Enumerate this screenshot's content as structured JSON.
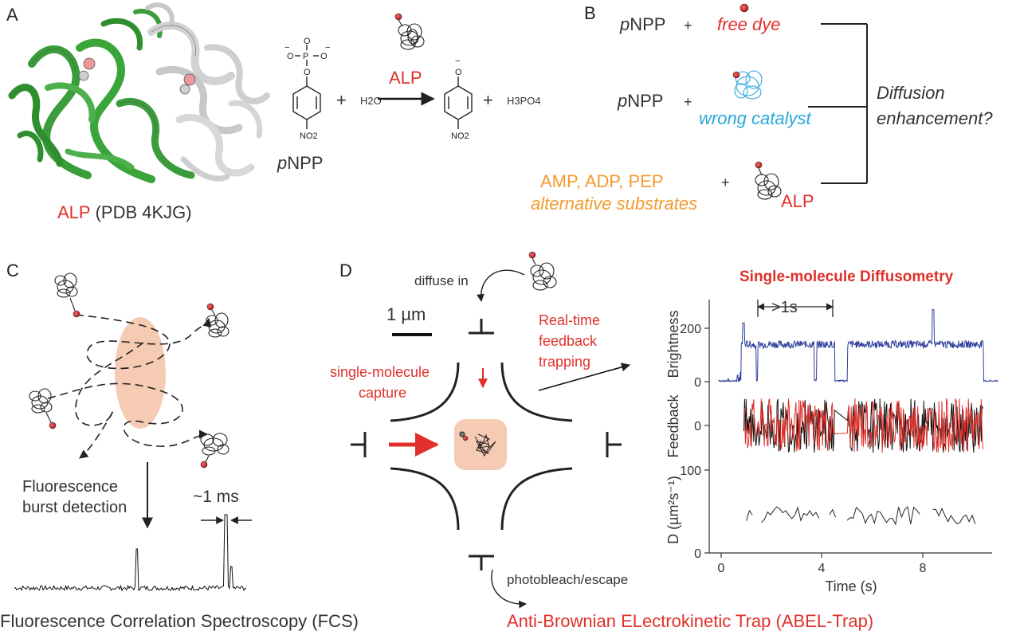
{
  "panel_letters": {
    "a": "A",
    "b": "B",
    "c": "C",
    "d": "D"
  },
  "colors": {
    "red": "#e1302a",
    "orange": "#f39a2c",
    "cyan": "#2aa7dc",
    "green": "#3a9c3a",
    "blue_trace": "#2e3f9c",
    "ellipse": "#f5cbb3"
  },
  "panel_a": {
    "enzyme": "ALP",
    "pdb": "(PDB 4KJG)",
    "substrate_prefix": "p",
    "substrate_suffix": "NPP",
    "plus": "+",
    "water": "H2O",
    "catalyst": "ALP",
    "product_acid": "H3PO4",
    "nitro_label": "NO2",
    "phosphate_o": "O",
    "phosphate_p": "P",
    "minus": "−"
  },
  "panel_b": {
    "row1_prefix": "p",
    "row1_suffix": "NPP",
    "plus": "+",
    "free_dye": "free dye",
    "row2_prefix": "p",
    "row2_suffix": "NPP",
    "wrong_catalyst": "wrong catalyst",
    "alt_list": "AMP, ADP, PEP",
    "alt_label": "alternative substrates",
    "enzyme": "ALP",
    "question_line1": "Diffusion",
    "question_line2": "enhancement?"
  },
  "panel_c": {
    "detection_line1": "Fluorescence",
    "detection_line2": "burst detection",
    "burst_width": "~1 ms",
    "title": "Fluorescence Correlation Spectroscopy (FCS)"
  },
  "panel_d": {
    "diffuse_in": "diffuse in",
    "scale": "1 µm",
    "capture_line1": "single-molecule",
    "capture_line2": "capture",
    "feedback_line1": "Real-time",
    "feedback_line2": "feedback",
    "feedback_line3": "trapping",
    "photobleach": "photobleach/escape",
    "title": "Anti-Brownian ELectrokinetic Trap (ABEL-Trap)"
  },
  "chart_data": {
    "type": "line",
    "title": "Single-molecule Diffusometry",
    "xlabel": "Time (s)",
    "xticks": [
      "0",
      "4",
      "8"
    ],
    "xlim": [
      0,
      11
    ],
    "annotation": ">1s",
    "series": [
      {
        "ylabel": "Brightness",
        "yticks": [
          "0",
          "200"
        ],
        "ylim": [
          0,
          300
        ],
        "level_on": 140
      },
      {
        "ylabel": "Feedback",
        "yticks": [
          "0"
        ],
        "ylim": [
          -30,
          30
        ]
      },
      {
        "ylabel": "D (µm²s⁻¹)",
        "yticks": [
          "0",
          "100"
        ],
        "ylim": [
          0,
          100
        ],
        "mean": 45
      }
    ]
  }
}
